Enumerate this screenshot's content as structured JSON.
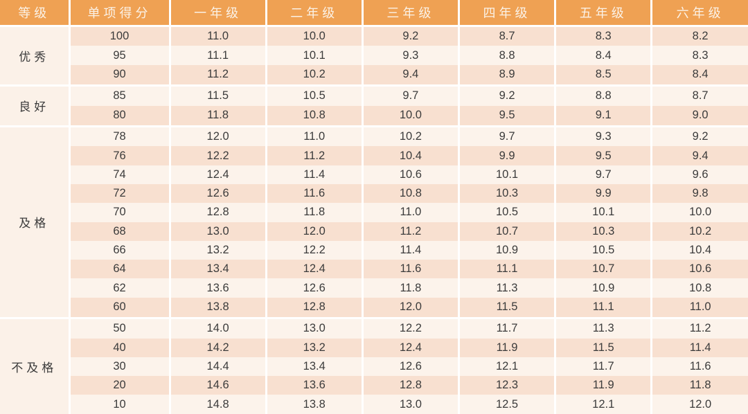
{
  "colors": {
    "header_bg": "#EFA153",
    "header_text": "#FBF2E7",
    "row_dark": "#F8E0D0",
    "row_light": "#FCF3EB",
    "label_bg": "#FBF1E8",
    "separator": "#FFFFFF",
    "body_text": "#3B3B3B"
  },
  "table": {
    "headers": [
      "等级",
      "单项得分",
      "一年级",
      "二年级",
      "三年级",
      "四年级",
      "五年级",
      "六年级"
    ],
    "groups": [
      {
        "label": "优秀",
        "rows": [
          [
            "100",
            "11.0",
            "10.0",
            "9.2",
            "8.7",
            "8.3",
            "8.2"
          ],
          [
            "95",
            "11.1",
            "10.1",
            "9.3",
            "8.8",
            "8.4",
            "8.3"
          ],
          [
            "90",
            "11.2",
            "10.2",
            "9.4",
            "8.9",
            "8.5",
            "8.4"
          ]
        ]
      },
      {
        "label": "良好",
        "rows": [
          [
            "85",
            "11.5",
            "10.5",
            "9.7",
            "9.2",
            "8.8",
            "8.7"
          ],
          [
            "80",
            "11.8",
            "10.8",
            "10.0",
            "9.5",
            "9.1",
            "9.0"
          ]
        ]
      },
      {
        "label": "及格",
        "rows": [
          [
            "78",
            "12.0",
            "11.0",
            "10.2",
            "9.7",
            "9.3",
            "9.2"
          ],
          [
            "76",
            "12.2",
            "11.2",
            "10.4",
            "9.9",
            "9.5",
            "9.4"
          ],
          [
            "74",
            "12.4",
            "11.4",
            "10.6",
            "10.1",
            "9.7",
            "9.6"
          ],
          [
            "72",
            "12.6",
            "11.6",
            "10.8",
            "10.3",
            "9.9",
            "9.8"
          ],
          [
            "70",
            "12.8",
            "11.8",
            "11.0",
            "10.5",
            "10.1",
            "10.0"
          ],
          [
            "68",
            "13.0",
            "12.0",
            "11.2",
            "10.7",
            "10.3",
            "10.2"
          ],
          [
            "66",
            "13.2",
            "12.2",
            "11.4",
            "10.9",
            "10.5",
            "10.4"
          ],
          [
            "64",
            "13.4",
            "12.4",
            "11.6",
            "11.1",
            "10.7",
            "10.6"
          ],
          [
            "62",
            "13.6",
            "12.6",
            "11.8",
            "11.3",
            "10.9",
            "10.8"
          ],
          [
            "60",
            "13.8",
            "12.8",
            "12.0",
            "11.5",
            "11.1",
            "11.0"
          ]
        ]
      },
      {
        "label": "不及格",
        "rows": [
          [
            "50",
            "14.0",
            "13.0",
            "12.2",
            "11.7",
            "11.3",
            "11.2"
          ],
          [
            "40",
            "14.2",
            "13.2",
            "12.4",
            "11.9",
            "11.5",
            "11.4"
          ],
          [
            "30",
            "14.4",
            "13.4",
            "12.6",
            "12.1",
            "11.7",
            "11.6"
          ],
          [
            "20",
            "14.6",
            "13.6",
            "12.8",
            "12.3",
            "11.9",
            "11.8"
          ],
          [
            "10",
            "14.8",
            "13.8",
            "13.0",
            "12.5",
            "12.1",
            "12.0"
          ]
        ]
      }
    ]
  }
}
